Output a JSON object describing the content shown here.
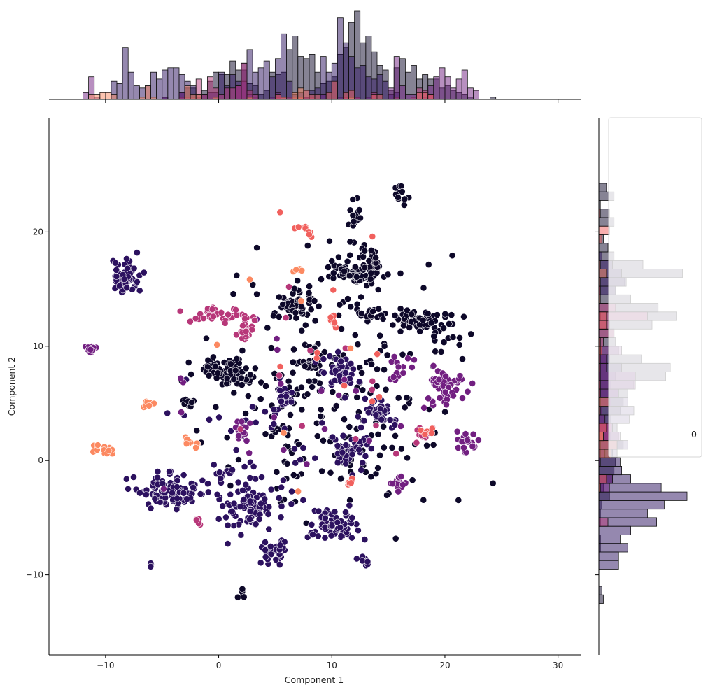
{
  "chart_data": {
    "type": "scatter",
    "title": "",
    "xlabel": "Component 1",
    "ylabel": "Component 2",
    "xlim": [
      -15,
      32
    ],
    "ylim": [
      -17,
      30
    ],
    "xticks": [
      -10,
      0,
      10,
      20,
      30
    ],
    "yticks": [
      -10,
      0,
      10,
      20
    ],
    "tick_labels_x": [
      "−10",
      "0",
      "10",
      "20",
      "30"
    ],
    "tick_labels_y": [
      "−10",
      "0",
      "10",
      "20"
    ],
    "legend": {
      "placement": "right",
      "entries": [
        "0"
      ]
    },
    "grid": false,
    "marginals": {
      "top": "histogram of Component 1 per group (stacked overlays)",
      "right": "histogram of Component 2 per group (stacked overlays)"
    },
    "palette": {
      "g0": "#0d0829",
      "g1": "#2c115f",
      "g2": "#721f81",
      "g3": "#b73779",
      "g4": "#f1605d",
      "g5": "#fc8961"
    },
    "clusters": [
      {
        "group": "g1",
        "cx": -8.3,
        "cy": 16.0,
        "sx": 0.7,
        "sy": 0.9,
        "n": 55
      },
      {
        "group": "g2",
        "cx": -11.3,
        "cy": 9.7,
        "sx": 0.3,
        "sy": 0.2,
        "n": 14
      },
      {
        "group": "g3",
        "cx": 0.0,
        "cy": 12.8,
        "sx": 1.3,
        "sy": 0.3,
        "n": 40
      },
      {
        "group": "g3",
        "cx": 2.3,
        "cy": 11.5,
        "sx": 0.3,
        "sy": 0.6,
        "n": 22
      },
      {
        "group": "g0",
        "cx": 0.3,
        "cy": 7.9,
        "sx": 1.2,
        "sy": 0.5,
        "n": 65
      },
      {
        "group": "g0",
        "cx": 2.2,
        "cy": 7.0,
        "sx": 0.5,
        "sy": 0.3,
        "n": 10
      },
      {
        "group": "g0",
        "cx": -2.7,
        "cy": 5.1,
        "sx": 0.4,
        "sy": 0.2,
        "n": 10
      },
      {
        "group": "g5",
        "cx": -6.2,
        "cy": 5.0,
        "sx": 0.3,
        "sy": 0.2,
        "n": 8
      },
      {
        "group": "g5",
        "cx": -10.0,
        "cy": 1.0,
        "sx": 0.5,
        "sy": 0.3,
        "n": 12
      },
      {
        "group": "g5",
        "cx": -2.5,
        "cy": 1.5,
        "sx": 0.4,
        "sy": 0.2,
        "n": 10
      },
      {
        "group": "g1",
        "cx": -4.5,
        "cy": -2.8,
        "sx": 1.4,
        "sy": 0.7,
        "n": 95
      },
      {
        "group": "g1",
        "cx": 2.8,
        "cy": -4.0,
        "sx": 1.6,
        "sy": 1.0,
        "n": 85
      },
      {
        "group": "g1",
        "cx": 5.0,
        "cy": -7.9,
        "sx": 0.6,
        "sy": 0.5,
        "n": 35
      },
      {
        "group": "g1",
        "cx": 10.3,
        "cy": -5.5,
        "sx": 1.1,
        "sy": 0.7,
        "n": 70
      },
      {
        "group": "g1",
        "cx": 11.4,
        "cy": 0.9,
        "sx": 0.9,
        "sy": 0.9,
        "n": 45
      },
      {
        "group": "g1",
        "cx": 5.8,
        "cy": 5.5,
        "sx": 0.4,
        "sy": 0.4,
        "n": 25
      },
      {
        "group": "g1",
        "cx": 10.7,
        "cy": 7.8,
        "sx": 0.7,
        "sy": 0.8,
        "n": 40
      },
      {
        "group": "g1",
        "cx": 14.2,
        "cy": 4.1,
        "sx": 0.9,
        "sy": 0.5,
        "n": 40
      },
      {
        "group": "g2",
        "cx": 20.3,
        "cy": 6.5,
        "sx": 1.0,
        "sy": 0.8,
        "n": 55
      },
      {
        "group": "g2",
        "cx": 15.8,
        "cy": 7.8,
        "sx": 0.6,
        "sy": 0.5,
        "n": 18
      },
      {
        "group": "g2",
        "cx": 21.8,
        "cy": 1.5,
        "sx": 0.4,
        "sy": 0.6,
        "n": 22
      },
      {
        "group": "g2",
        "cx": 15.8,
        "cy": -2.0,
        "sx": 0.4,
        "sy": 0.4,
        "n": 15
      },
      {
        "group": "g2",
        "cx": 2.0,
        "cy": 2.5,
        "sx": 0.3,
        "sy": 0.8,
        "n": 16
      },
      {
        "group": "g3",
        "cx": 18.0,
        "cy": 2.3,
        "sx": 0.4,
        "sy": 0.4,
        "n": 12
      },
      {
        "group": "g0",
        "cx": 6.8,
        "cy": 13.6,
        "sx": 0.8,
        "sy": 0.8,
        "n": 60
      },
      {
        "group": "g0",
        "cx": 11.9,
        "cy": 16.4,
        "sx": 1.3,
        "sy": 0.5,
        "n": 80
      },
      {
        "group": "g0",
        "cx": 13.4,
        "cy": 17.5,
        "sx": 0.5,
        "sy": 0.9,
        "n": 30
      },
      {
        "group": "g0",
        "cx": 12.1,
        "cy": 20.7,
        "sx": 0.3,
        "sy": 0.8,
        "n": 20
      },
      {
        "group": "g0",
        "cx": 17.8,
        "cy": 12.3,
        "sx": 1.3,
        "sy": 0.4,
        "n": 60
      },
      {
        "group": "g0",
        "cx": 14.0,
        "cy": 12.8,
        "sx": 0.7,
        "sy": 0.3,
        "n": 16
      },
      {
        "group": "g0",
        "cx": 8.3,
        "cy": 8.5,
        "sx": 0.5,
        "sy": 0.8,
        "n": 22
      },
      {
        "group": "g0",
        "cx": 16.0,
        "cy": 23.2,
        "sx": 0.4,
        "sy": 0.5,
        "n": 14
      },
      {
        "group": "g0",
        "cx": 20.0,
        "cy": 11.0,
        "sx": 1.0,
        "sy": 0.6,
        "n": 12
      },
      {
        "group": "g0",
        "cx": 5.5,
        "cy": 2.7,
        "sx": 0.5,
        "sy": 0.3,
        "n": 10
      },
      {
        "group": "g4",
        "cx": 10.2,
        "cy": 12.2,
        "sx": 0.2,
        "sy": 0.3,
        "n": 10
      },
      {
        "group": "g4",
        "cx": 11.5,
        "cy": -2.0,
        "sx": 0.3,
        "sy": 0.3,
        "n": 6
      },
      {
        "group": "g4",
        "cx": 18.5,
        "cy": 2.5,
        "sx": 0.4,
        "sy": 0.3,
        "n": 8
      },
      {
        "group": "g4",
        "cx": 7.5,
        "cy": 20.2,
        "sx": 0.4,
        "sy": 0.3,
        "n": 8
      },
      {
        "group": "g5",
        "cx": 7.0,
        "cy": 16.6,
        "sx": 0.3,
        "sy": 0.2,
        "n": 6
      },
      {
        "group": "g3",
        "cx": -1.7,
        "cy": -5.3,
        "sx": 0.3,
        "sy": 0.2,
        "n": 6
      },
      {
        "group": "g0",
        "cx": 2.0,
        "cy": -11.8,
        "sx": 0.2,
        "sy": 0.2,
        "n": 5
      },
      {
        "group": "g1",
        "cx": 12.8,
        "cy": -8.7,
        "sx": 0.4,
        "sy": 0.3,
        "n": 10
      },
      {
        "group": "g1",
        "cx": -6.0,
        "cy": -9.2,
        "sx": 0.1,
        "sy": 0.1,
        "n": 3
      },
      {
        "group": "g1",
        "cx": 0.4,
        "cy": -1.2,
        "sx": 0.5,
        "sy": 0.4,
        "n": 12
      }
    ],
    "scattered": [
      {
        "group": "g0",
        "n": 230,
        "cx": 10,
        "cy": 5,
        "sx": 9.0,
        "sy": 9.5
      },
      {
        "group": "g1",
        "n": 45,
        "cx": 4,
        "cy": 0,
        "sx": 8.0,
        "sy": 8.0
      },
      {
        "group": "g2",
        "n": 18,
        "cx": 6,
        "cy": 4,
        "sx": 9.0,
        "sy": 8.0
      },
      {
        "group": "g3",
        "n": 12,
        "cx": 10,
        "cy": 8,
        "sx": 8.0,
        "sy": 8.0
      },
      {
        "group": "g4",
        "n": 10,
        "cx": 12,
        "cy": 8,
        "sx": 7.0,
        "sy": 7.0
      },
      {
        "group": "g5",
        "n": 6,
        "cx": 8,
        "cy": 6,
        "sx": 7.0,
        "sy": 7.0
      }
    ],
    "hist_bin_width_x": 0.5,
    "hist_bin_width_y": 0.75
  }
}
